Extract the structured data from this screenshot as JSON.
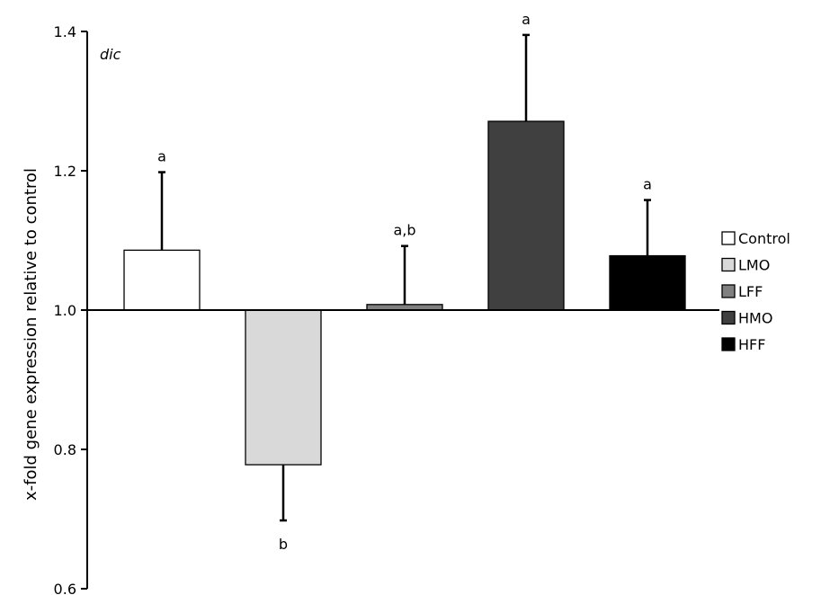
{
  "chart_data": {
    "type": "bar",
    "annotation": "dic",
    "ylabel": "x-fold gene expression relative to control",
    "xlabel": "",
    "ylim": [
      0.6,
      1.4
    ],
    "yticks": [
      "0.6",
      "0.8",
      "1.0",
      "1.2",
      "1.4"
    ],
    "baseline": 1.0,
    "grid": false,
    "legend_position": "right",
    "categories": [
      "Control",
      "LMO",
      "LFF",
      "HMO",
      "HFF"
    ],
    "values": [
      1.086,
      0.778,
      1.008,
      1.271,
      1.078
    ],
    "errors": [
      0.112,
      0.08,
      0.084,
      0.124,
      0.08
    ],
    "significance": [
      "a",
      "b",
      "a,b",
      "a",
      "a"
    ],
    "colors": [
      "#ffffff",
      "#d9d9d9",
      "#808080",
      "#404040",
      "#000000"
    ]
  }
}
